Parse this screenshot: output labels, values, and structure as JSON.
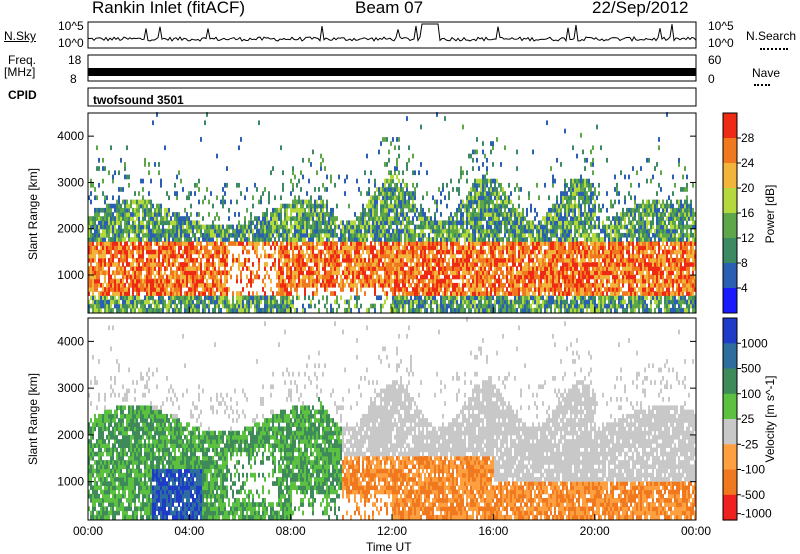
{
  "header": {
    "station": "Rankin Inlet (fitACF)",
    "beam": "Beam 07",
    "date": "22/Sep/2012"
  },
  "strip_labels": {
    "nsky": "N.Sky",
    "nsearch": "N.Search",
    "freq_top": "Freq.",
    "freq_unit": "[MHz]",
    "nave": "Nave",
    "cpid": "CPID",
    "cpid_value": "twofsound 3501",
    "nsky_ticks": [
      "10^5",
      "10^0"
    ],
    "nsearch_ticks": [
      "10^5",
      "10^0"
    ],
    "freq_ticks": [
      "18",
      "8"
    ],
    "nave_ticks": [
      "60",
      "0"
    ]
  },
  "chart_data": [
    {
      "type": "heatmap",
      "name": "power-panel",
      "ylabel": "Slant Range [km]",
      "xlabel": "",
      "x_ticks": [
        "00:00",
        "04:00",
        "08:00",
        "12:00",
        "16:00",
        "20:00",
        "00:00"
      ],
      "y_ticks": [
        "1000",
        "2000",
        "3000",
        "4000"
      ],
      "ylim": [
        180,
        4500
      ],
      "xlim_hours": [
        0,
        24
      ],
      "colorbar": {
        "label": "Power [dB]",
        "ticks": [
          "4",
          "8",
          "12",
          "16",
          "20",
          "24",
          "28"
        ],
        "range": [
          0,
          32
        ],
        "colors": [
          "#1a1aff",
          "#2b5fb3",
          "#3c8a64",
          "#5da64a",
          "#b5d93c",
          "#f2b43a",
          "#f0781e",
          "#ee2a14"
        ]
      }
    },
    {
      "type": "heatmap",
      "name": "velocity-panel",
      "ylabel": "Slant Range [km]",
      "xlabel": "Time UT",
      "x_ticks": [
        "00:00",
        "04:00",
        "08:00",
        "12:00",
        "16:00",
        "20:00",
        "00:00"
      ],
      "y_ticks": [
        "1000",
        "2000",
        "3000",
        "4000"
      ],
      "ylim": [
        180,
        4500
      ],
      "xlim_hours": [
        0,
        24
      ],
      "colorbar": {
        "label": "Velocity [m s^-1]",
        "ticks": [
          "1000",
          "500",
          "100",
          "25",
          "-25",
          "-100",
          "-500",
          "-1000"
        ],
        "colors": [
          "#1f3cc8",
          "#2e6e9e",
          "#3f8a5a",
          "#5cc040",
          "#c8c8c8",
          "#ffa040",
          "#f0781e",
          "#ee2020"
        ]
      }
    }
  ]
}
